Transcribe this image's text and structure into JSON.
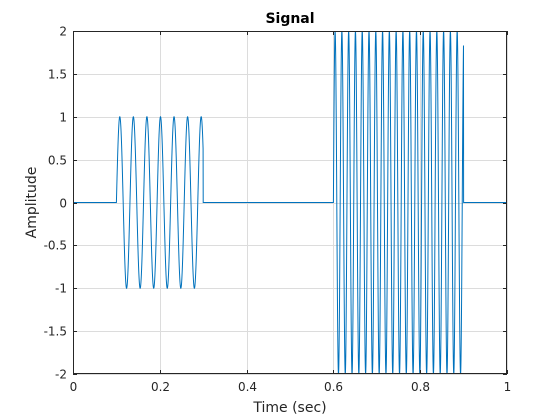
{
  "chart_data": {
    "type": "line",
    "title": "Signal",
    "xlabel": "Time (sec)",
    "ylabel": "Amplitude",
    "xlim": [
      0,
      1
    ],
    "ylim": [
      -2,
      2
    ],
    "xticks": [
      0,
      0.2,
      0.4,
      0.6,
      0.8,
      1
    ],
    "xtick_labels": [
      "0",
      "0.2",
      "0.4",
      "0.6",
      "0.8",
      "1"
    ],
    "yticks": [
      -2,
      -1.5,
      -1,
      -0.5,
      0,
      0.5,
      1,
      1.5,
      2
    ],
    "ytick_labels": [
      "-2",
      "-1.5",
      "-1",
      "-0.5",
      "0",
      "0.5",
      "1",
      "1.5",
      "2"
    ],
    "grid": true,
    "series": [
      {
        "color": "#0072bd",
        "segments": [
          {
            "t_start": 0.0,
            "t_end": 0.1,
            "amplitude": 0,
            "frequency_hz": 0
          },
          {
            "t_start": 0.1,
            "t_end": 0.3,
            "amplitude": 1,
            "frequency_hz": 32
          },
          {
            "t_start": 0.3,
            "t_end": 0.6,
            "amplitude": 0,
            "frequency_hz": 0
          },
          {
            "t_start": 0.6,
            "t_end": 0.9,
            "amplitude": 2,
            "frequency_hz": 64
          },
          {
            "t_start": 0.9,
            "t_end": 1.0,
            "amplitude": 0,
            "frequency_hz": 0
          }
        ]
      }
    ]
  }
}
